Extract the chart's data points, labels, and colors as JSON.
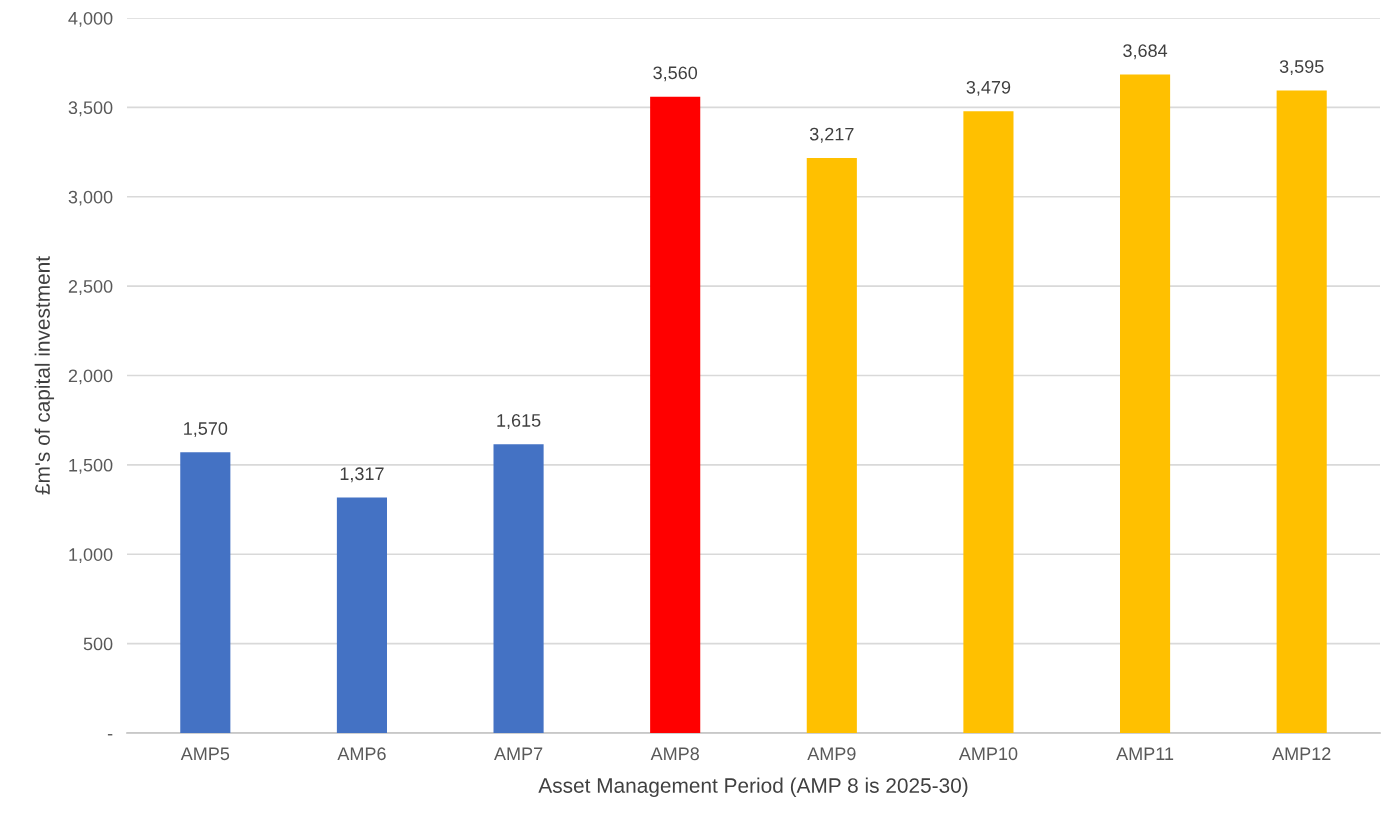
{
  "chart_data": {
    "type": "bar",
    "xlabel": "Asset Management Period (AMP 8 is 2025-30)",
    "ylabel": "£m's of capital investment",
    "categories": [
      "AMP5",
      "AMP6",
      "AMP7",
      "AMP8",
      "AMP9",
      "AMP10",
      "AMP11",
      "AMP12"
    ],
    "values": [
      1570,
      1317,
      1615,
      3560,
      3217,
      3479,
      3684,
      3595
    ],
    "colors": [
      "#4472c4",
      "#4472c4",
      "#4472c4",
      "#ff0000",
      "#ffc000",
      "#ffc000",
      "#ffc000",
      "#ffc000"
    ],
    "value_labels": [
      "1,570",
      "1,317",
      "1,615",
      "3,560",
      "3,217",
      "3,479",
      "3,684",
      "3,595"
    ],
    "ylim": [
      0,
      4000
    ],
    "yticks": [
      {
        "value": 0,
        "label": "-"
      },
      {
        "value": 500,
        "label": "500"
      },
      {
        "value": 1000,
        "label": "1,000"
      },
      {
        "value": 1500,
        "label": "1,500"
      },
      {
        "value": 2000,
        "label": "2,000"
      },
      {
        "value": 2500,
        "label": "2,500"
      },
      {
        "value": 3000,
        "label": "3,000"
      },
      {
        "value": 3500,
        "label": "3,500"
      },
      {
        "value": 4000,
        "label": "4,000"
      }
    ],
    "grid": "y"
  }
}
